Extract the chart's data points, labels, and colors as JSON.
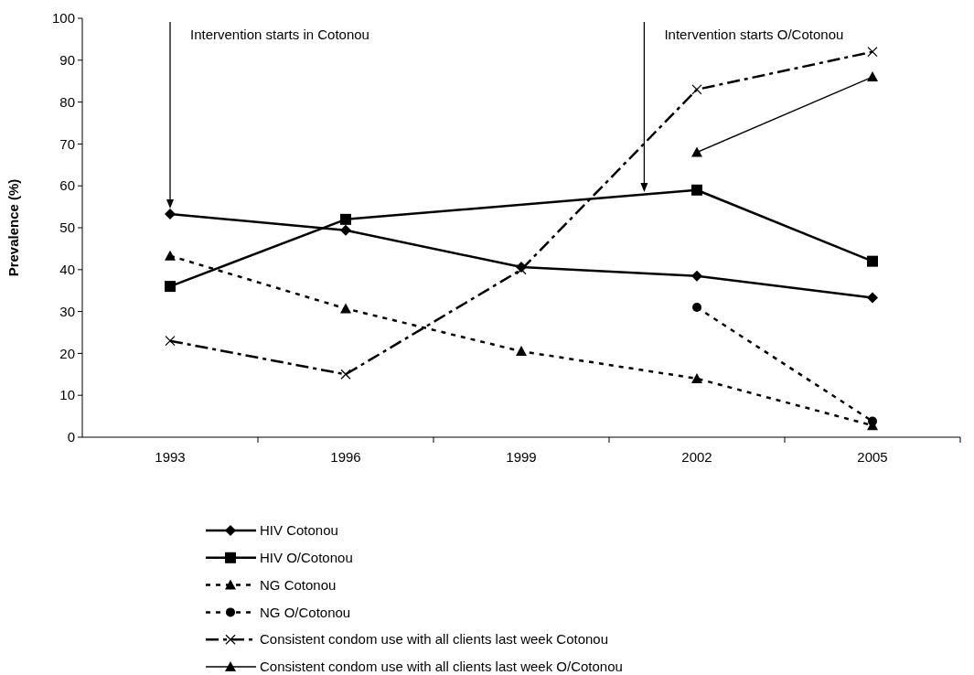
{
  "chart_data": {
    "type": "line",
    "ylabel": "Prevalence (%)",
    "categories": [
      "1993",
      "1996",
      "1999",
      "2002",
      "2005"
    ],
    "ylim": [
      0,
      100
    ],
    "yticks": [
      0,
      10,
      20,
      30,
      40,
      50,
      60,
      70,
      80,
      90,
      100
    ],
    "grid": false,
    "legend": "bottom",
    "annotations": [
      "Intervention starts in Cotonou",
      "Intervention starts O/Cotonou"
    ],
    "series": [
      {
        "name": "HIV Cotonou",
        "color": "#000000",
        "marker": "diamond",
        "line_style": "solid",
        "values": [
          53.3,
          49.4,
          40.6,
          38.5,
          33.3
        ]
      },
      {
        "name": "HIV O/Cotonou",
        "color": "#000000",
        "marker": "square",
        "line_style": "solid",
        "values": [
          36,
          52,
          null,
          59,
          42
        ]
      },
      {
        "name": "NG Cotonou",
        "color": "#000000",
        "marker": "triangle",
        "line_style": "dotted",
        "values": [
          43.3,
          30.7,
          20.5,
          14,
          2.8
        ]
      },
      {
        "name": "NG O/Cotonou",
        "color": "#000000",
        "marker": "circle",
        "line_style": "dotted",
        "values": [
          null,
          null,
          null,
          31,
          3.8
        ]
      },
      {
        "name": "Consistent condom use with all clients last week Cotonou",
        "color": "#000000",
        "marker": "cross",
        "line_style": "dashed",
        "values": [
          23,
          15,
          40,
          83,
          92
        ]
      },
      {
        "name": "Consistent condom use with all clients last week O/Cotonou",
        "color": "#000000",
        "marker": "triangle",
        "line_style": "solid",
        "values": [
          null,
          null,
          null,
          68,
          86
        ]
      }
    ]
  }
}
